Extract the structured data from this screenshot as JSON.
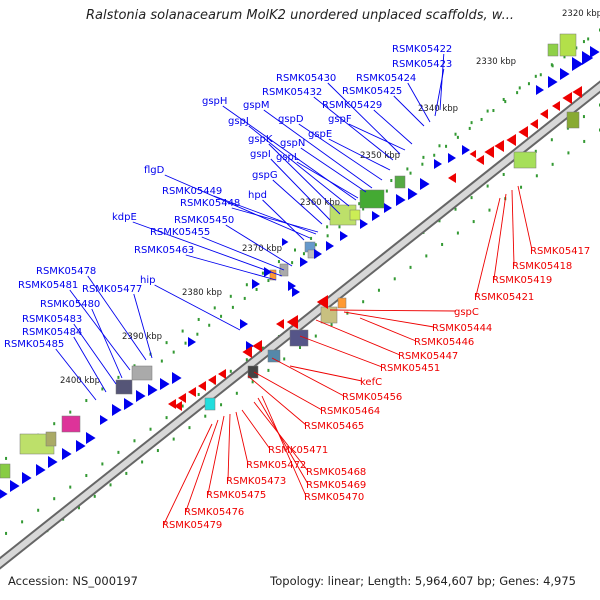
{
  "title": "Ralstonia solanacearum MolK2 unordered unplaced scaffolds, w...",
  "footer": {
    "accession": "Accession: NS_000197",
    "topology": "Topology: linear; Length: 5,964,607 bp; Genes: 4,975"
  },
  "colors": {
    "forward_strand": "#0000ee",
    "reverse_strand": "#ee0000",
    "backbone": "#999999",
    "tick_dots": "#339933"
  },
  "ticks": [
    "2320 kbp",
    "2330 kbp",
    "2340 kbp",
    "2350 kbp",
    "2360 kbp",
    "2370 kbp",
    "2380 kbp",
    "2390 kbp",
    "2400 kbp"
  ],
  "forward_genes": [
    "RSMK05422",
    "RSMK05423",
    "RSMK05424",
    "RSMK05425",
    "RSMK05430",
    "RSMK05432",
    "RSMK05429",
    "gspH",
    "gspM",
    "gspJ",
    "gspD",
    "gspF",
    "gspE",
    "gspK",
    "gspN",
    "gspI",
    "gspL",
    "gspG",
    "flgD",
    "RSMK05449",
    "RSMK05448",
    "hpd",
    "kdpE",
    "RSMK05450",
    "RSMK05455",
    "RSMK05463",
    "hip",
    "RSMK05478",
    "RSMK05481",
    "RSMK05477",
    "RSMK05480",
    "RSMK05483",
    "RSMK05484",
    "RSMK05485"
  ],
  "reverse_genes": [
    "RSMK05417",
    "RSMK05418",
    "RSMK05419",
    "RSMK05421",
    "gspC",
    "RSMK05444",
    "RSMK05446",
    "RSMK05447",
    "RSMK05451",
    "kefC",
    "RSMK05456",
    "RSMK05464",
    "RSMK05465",
    "RSMK05471",
    "RSMK05472",
    "RSMK05468",
    "RSMK05473",
    "RSMK05469",
    "RSMK05470",
    "RSMK05475",
    "RSMK05476",
    "RSMK05479"
  ]
}
